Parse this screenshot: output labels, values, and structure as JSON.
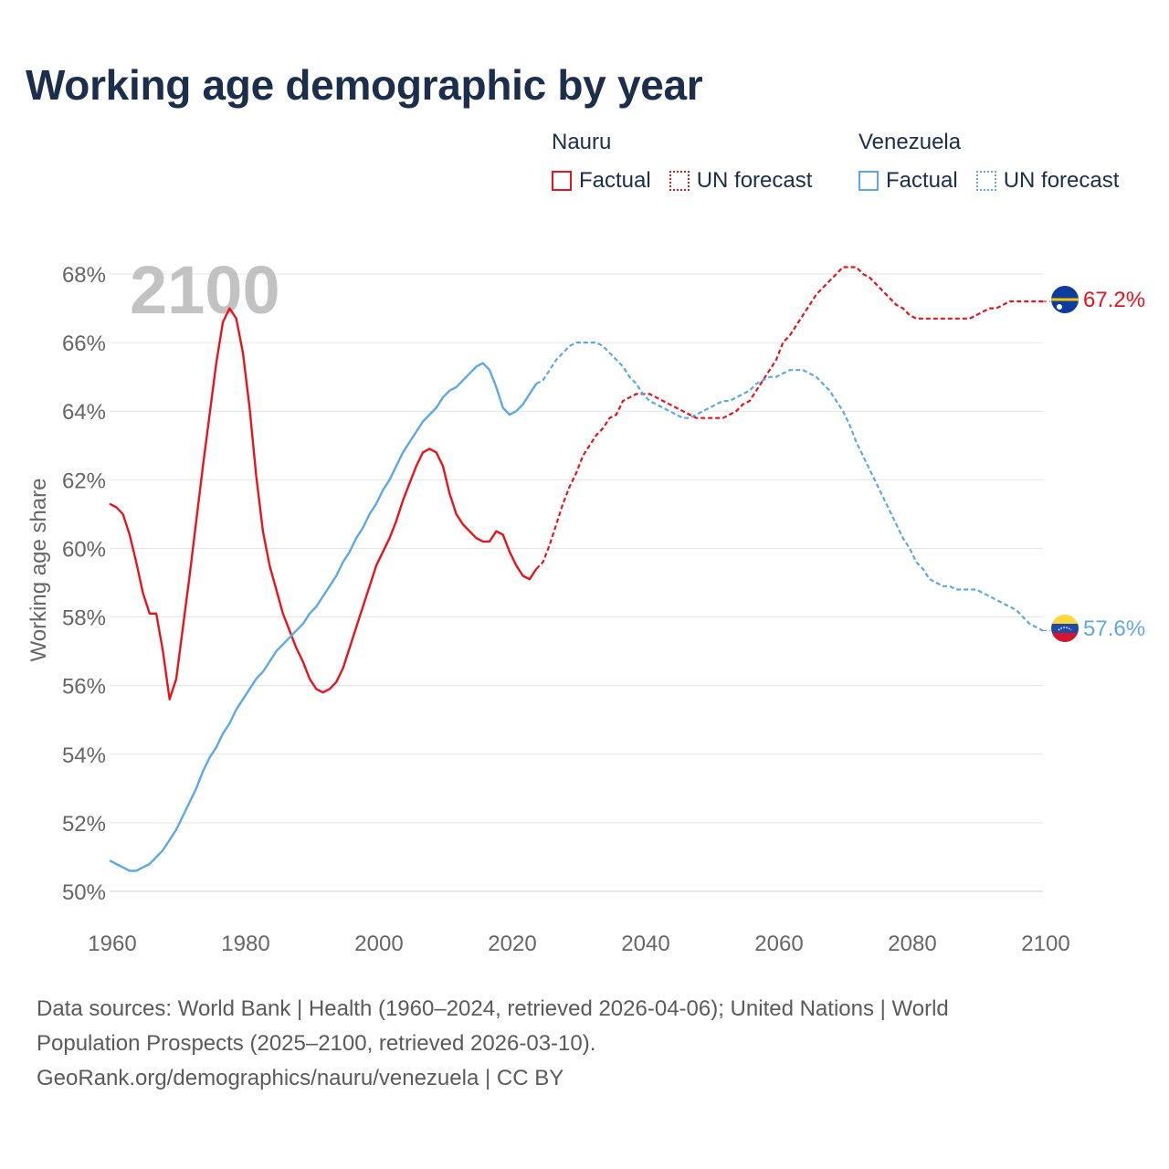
{
  "title": "Working age demographic by year",
  "legend": {
    "groups": [
      {
        "name": "Nauru",
        "color": "#e8141c",
        "items": [
          {
            "label": "Factual",
            "style": "solid"
          },
          {
            "label": "UN forecast",
            "style": "dotted"
          }
        ]
      },
      {
        "name": "Venezuela",
        "color": "#5ea8e6",
        "items": [
          {
            "label": "Factual",
            "style": "solid"
          },
          {
            "label": "UN forecast",
            "style": "dotted"
          }
        ]
      }
    ]
  },
  "chart_data": {
    "type": "line",
    "title": "Working age demographic by year",
    "xlabel": "",
    "ylabel": "Working age share",
    "xlim": [
      1960,
      2100
    ],
    "ylim": [
      50,
      68
    ],
    "x_ticks": [
      "1960",
      "1980",
      "2000",
      "2020",
      "2040",
      "2060",
      "2080",
      "2100"
    ],
    "y_ticks": [
      "50%",
      "52%",
      "54%",
      "56%",
      "58%",
      "60%",
      "62%",
      "64%",
      "66%",
      "68%"
    ],
    "year_watermark": "2100",
    "factual_end_year": 2024,
    "series": [
      {
        "name": "Nauru",
        "color": "#e8141c",
        "end_label": "67.2%",
        "flag": "nauru-flag-icon",
        "points": [
          [
            1960,
            61.3
          ],
          [
            1961,
            61.2
          ],
          [
            1962,
            61.0
          ],
          [
            1963,
            60.4
          ],
          [
            1964,
            59.6
          ],
          [
            1965,
            58.7
          ],
          [
            1966,
            58.1
          ],
          [
            1967,
            58.1
          ],
          [
            1968,
            57.0
          ],
          [
            1969,
            55.6
          ],
          [
            1970,
            56.2
          ],
          [
            1971,
            57.7
          ],
          [
            1972,
            59.2
          ],
          [
            1973,
            60.8
          ],
          [
            1974,
            62.4
          ],
          [
            1975,
            63.9
          ],
          [
            1976,
            65.4
          ],
          [
            1977,
            66.6
          ],
          [
            1978,
            67.0
          ],
          [
            1979,
            66.7
          ],
          [
            1980,
            65.7
          ],
          [
            1981,
            64.1
          ],
          [
            1982,
            62.1
          ],
          [
            1983,
            60.5
          ],
          [
            1984,
            59.5
          ],
          [
            1985,
            58.8
          ],
          [
            1986,
            58.1
          ],
          [
            1987,
            57.6
          ],
          [
            1988,
            57.1
          ],
          [
            1989,
            56.7
          ],
          [
            1990,
            56.2
          ],
          [
            1991,
            55.9
          ],
          [
            1992,
            55.8
          ],
          [
            1993,
            55.9
          ],
          [
            1994,
            56.1
          ],
          [
            1995,
            56.5
          ],
          [
            1996,
            57.1
          ],
          [
            1997,
            57.7
          ],
          [
            1998,
            58.3
          ],
          [
            1999,
            58.9
          ],
          [
            2000,
            59.5
          ],
          [
            2001,
            59.9
          ],
          [
            2002,
            60.3
          ],
          [
            2003,
            60.8
          ],
          [
            2004,
            61.4
          ],
          [
            2005,
            61.9
          ],
          [
            2006,
            62.4
          ],
          [
            2007,
            62.8
          ],
          [
            2008,
            62.9
          ],
          [
            2009,
            62.8
          ],
          [
            2010,
            62.4
          ],
          [
            2011,
            61.6
          ],
          [
            2012,
            61.0
          ],
          [
            2013,
            60.7
          ],
          [
            2014,
            60.5
          ],
          [
            2015,
            60.3
          ],
          [
            2016,
            60.2
          ],
          [
            2017,
            60.2
          ],
          [
            2018,
            60.5
          ],
          [
            2019,
            60.4
          ],
          [
            2020,
            59.9
          ],
          [
            2021,
            59.5
          ],
          [
            2022,
            59.2
          ],
          [
            2023,
            59.1
          ],
          [
            2024,
            59.4
          ],
          [
            2025,
            59.6
          ],
          [
            2026,
            60.1
          ],
          [
            2027,
            60.7
          ],
          [
            2028,
            61.3
          ],
          [
            2029,
            61.8
          ],
          [
            2030,
            62.2
          ],
          [
            2031,
            62.7
          ],
          [
            2032,
            63.0
          ],
          [
            2033,
            63.3
          ],
          [
            2034,
            63.5
          ],
          [
            2035,
            63.8
          ],
          [
            2036,
            63.9
          ],
          [
            2037,
            64.3
          ],
          [
            2038,
            64.4
          ],
          [
            2039,
            64.5
          ],
          [
            2040,
            64.5
          ],
          [
            2041,
            64.5
          ],
          [
            2042,
            64.4
          ],
          [
            2043,
            64.3
          ],
          [
            2044,
            64.2
          ],
          [
            2045,
            64.1
          ],
          [
            2046,
            64.0
          ],
          [
            2047,
            63.9
          ],
          [
            2048,
            63.8
          ],
          [
            2049,
            63.8
          ],
          [
            2050,
            63.8
          ],
          [
            2051,
            63.8
          ],
          [
            2052,
            63.8
          ],
          [
            2053,
            63.9
          ],
          [
            2054,
            64.0
          ],
          [
            2055,
            64.2
          ],
          [
            2056,
            64.3
          ],
          [
            2057,
            64.6
          ],
          [
            2058,
            64.9
          ],
          [
            2059,
            65.2
          ],
          [
            2060,
            65.5
          ],
          [
            2061,
            66.0
          ],
          [
            2062,
            66.2
          ],
          [
            2063,
            66.5
          ],
          [
            2064,
            66.8
          ],
          [
            2065,
            67.1
          ],
          [
            2066,
            67.4
          ],
          [
            2067,
            67.6
          ],
          [
            2068,
            67.8
          ],
          [
            2069,
            68.0
          ],
          [
            2070,
            68.2
          ],
          [
            2071,
            68.2
          ],
          [
            2072,
            68.2
          ],
          [
            2073,
            68.0
          ],
          [
            2074,
            67.9
          ],
          [
            2075,
            67.7
          ],
          [
            2076,
            67.5
          ],
          [
            2077,
            67.3
          ],
          [
            2078,
            67.1
          ],
          [
            2079,
            67.0
          ],
          [
            2080,
            66.8
          ],
          [
            2081,
            66.7
          ],
          [
            2082,
            66.7
          ],
          [
            2083,
            66.7
          ],
          [
            2084,
            66.7
          ],
          [
            2085,
            66.7
          ],
          [
            2086,
            66.7
          ],
          [
            2087,
            66.7
          ],
          [
            2088,
            66.7
          ],
          [
            2089,
            66.7
          ],
          [
            2090,
            66.8
          ],
          [
            2091,
            66.9
          ],
          [
            2092,
            67.0
          ],
          [
            2093,
            67.0
          ],
          [
            2094,
            67.1
          ],
          [
            2095,
            67.2
          ],
          [
            2096,
            67.2
          ],
          [
            2097,
            67.2
          ],
          [
            2098,
            67.2
          ],
          [
            2099,
            67.2
          ],
          [
            2100,
            67.2
          ]
        ]
      },
      {
        "name": "Venezuela",
        "color": "#5ea8e6",
        "end_label": "57.6%",
        "flag": "venezuela-flag-icon",
        "points": [
          [
            1960,
            50.9
          ],
          [
            1961,
            50.8
          ],
          [
            1962,
            50.7
          ],
          [
            1963,
            50.6
          ],
          [
            1964,
            50.6
          ],
          [
            1965,
            50.7
          ],
          [
            1966,
            50.8
          ],
          [
            1967,
            51.0
          ],
          [
            1968,
            51.2
          ],
          [
            1969,
            51.5
          ],
          [
            1970,
            51.8
          ],
          [
            1971,
            52.2
          ],
          [
            1972,
            52.6
          ],
          [
            1973,
            53.0
          ],
          [
            1974,
            53.5
          ],
          [
            1975,
            53.9
          ],
          [
            1976,
            54.2
          ],
          [
            1977,
            54.6
          ],
          [
            1978,
            54.9
          ],
          [
            1979,
            55.3
          ],
          [
            1980,
            55.6
          ],
          [
            1981,
            55.9
          ],
          [
            1982,
            56.2
          ],
          [
            1983,
            56.4
          ],
          [
            1984,
            56.7
          ],
          [
            1985,
            57.0
          ],
          [
            1986,
            57.2
          ],
          [
            1987,
            57.4
          ],
          [
            1988,
            57.6
          ],
          [
            1989,
            57.8
          ],
          [
            1990,
            58.1
          ],
          [
            1991,
            58.3
          ],
          [
            1992,
            58.6
          ],
          [
            1993,
            58.9
          ],
          [
            1994,
            59.2
          ],
          [
            1995,
            59.6
          ],
          [
            1996,
            59.9
          ],
          [
            1997,
            60.3
          ],
          [
            1998,
            60.6
          ],
          [
            1999,
            61.0
          ],
          [
            2000,
            61.3
          ],
          [
            2001,
            61.7
          ],
          [
            2002,
            62.0
          ],
          [
            2003,
            62.4
          ],
          [
            2004,
            62.8
          ],
          [
            2005,
            63.1
          ],
          [
            2006,
            63.4
          ],
          [
            2007,
            63.7
          ],
          [
            2008,
            63.9
          ],
          [
            2009,
            64.1
          ],
          [
            2010,
            64.4
          ],
          [
            2011,
            64.6
          ],
          [
            2012,
            64.7
          ],
          [
            2013,
            64.9
          ],
          [
            2014,
            65.1
          ],
          [
            2015,
            65.3
          ],
          [
            2016,
            65.4
          ],
          [
            2017,
            65.2
          ],
          [
            2018,
            64.7
          ],
          [
            2019,
            64.1
          ],
          [
            2020,
            63.9
          ],
          [
            2021,
            64.0
          ],
          [
            2022,
            64.2
          ],
          [
            2023,
            64.5
          ],
          [
            2024,
            64.8
          ],
          [
            2025,
            64.9
          ],
          [
            2026,
            65.2
          ],
          [
            2027,
            65.5
          ],
          [
            2028,
            65.7
          ],
          [
            2029,
            65.9
          ],
          [
            2030,
            66.0
          ],
          [
            2031,
            66.0
          ],
          [
            2032,
            66.0
          ],
          [
            2033,
            66.0
          ],
          [
            2034,
            65.9
          ],
          [
            2035,
            65.7
          ],
          [
            2036,
            65.5
          ],
          [
            2037,
            65.3
          ],
          [
            2038,
            65.0
          ],
          [
            2039,
            64.8
          ],
          [
            2040,
            64.5
          ],
          [
            2041,
            64.3
          ],
          [
            2042,
            64.2
          ],
          [
            2043,
            64.1
          ],
          [
            2044,
            64.0
          ],
          [
            2045,
            63.9
          ],
          [
            2046,
            63.8
          ],
          [
            2047,
            63.8
          ],
          [
            2048,
            63.9
          ],
          [
            2049,
            64.0
          ],
          [
            2050,
            64.1
          ],
          [
            2051,
            64.2
          ],
          [
            2052,
            64.3
          ],
          [
            2053,
            64.3
          ],
          [
            2054,
            64.4
          ],
          [
            2055,
            64.5
          ],
          [
            2056,
            64.6
          ],
          [
            2057,
            64.8
          ],
          [
            2058,
            64.9
          ],
          [
            2059,
            65.0
          ],
          [
            2060,
            65.0
          ],
          [
            2061,
            65.1
          ],
          [
            2062,
            65.2
          ],
          [
            2063,
            65.2
          ],
          [
            2064,
            65.2
          ],
          [
            2065,
            65.1
          ],
          [
            2066,
            65.0
          ],
          [
            2067,
            64.8
          ],
          [
            2068,
            64.6
          ],
          [
            2069,
            64.3
          ],
          [
            2070,
            64.0
          ],
          [
            2071,
            63.6
          ],
          [
            2072,
            63.1
          ],
          [
            2073,
            62.7
          ],
          [
            2074,
            62.3
          ],
          [
            2075,
            61.9
          ],
          [
            2076,
            61.5
          ],
          [
            2077,
            61.1
          ],
          [
            2078,
            60.7
          ],
          [
            2079,
            60.3
          ],
          [
            2080,
            60.0
          ],
          [
            2081,
            59.6
          ],
          [
            2082,
            59.4
          ],
          [
            2083,
            59.1
          ],
          [
            2084,
            59.0
          ],
          [
            2085,
            58.9
          ],
          [
            2086,
            58.9
          ],
          [
            2087,
            58.8
          ],
          [
            2088,
            58.8
          ],
          [
            2089,
            58.8
          ],
          [
            2090,
            58.8
          ],
          [
            2091,
            58.7
          ],
          [
            2092,
            58.6
          ],
          [
            2093,
            58.5
          ],
          [
            2094,
            58.4
          ],
          [
            2095,
            58.3
          ],
          [
            2096,
            58.2
          ],
          [
            2097,
            58.0
          ],
          [
            2098,
            57.8
          ],
          [
            2099,
            57.7
          ],
          [
            2100,
            57.6
          ]
        ]
      }
    ]
  },
  "sources": {
    "line1": "Data sources: World Bank | Health (1960–2024, retrieved 2026-04-06); United Nations | World",
    "line2": "Population Prospects (2025–2100, retrieved 2026-03-10).",
    "line3": "GeoRank.org/demographics/nauru/venezuela | CC BY"
  }
}
